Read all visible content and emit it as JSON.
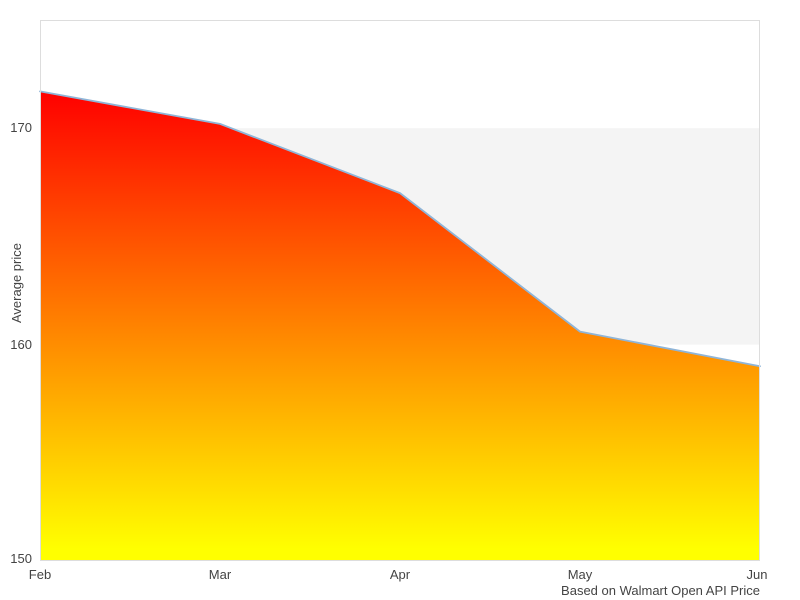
{
  "chart_data": {
    "type": "area",
    "categories": [
      "Feb",
      "Mar",
      "Apr",
      "May",
      "Jun"
    ],
    "values": [
      171.7,
      170.2,
      167.0,
      160.6,
      159.0
    ],
    "title": "",
    "xlabel": "",
    "ylabel": "Average price",
    "caption": "Based on Walmart Open API Price",
    "ylim": [
      150,
      175
    ],
    "yticks": [
      150,
      160,
      170
    ],
    "band": {
      "from": 160,
      "to": 170,
      "color": "#f4f4f4"
    },
    "grid": false,
    "legend": false,
    "colors": {
      "area_gradient_top": "#ff0000",
      "area_gradient_bottom": "#ffff00",
      "line": "#8fb5d8",
      "plot_border": "#dddddd",
      "text": "#444444",
      "background": "#ffffff"
    }
  }
}
